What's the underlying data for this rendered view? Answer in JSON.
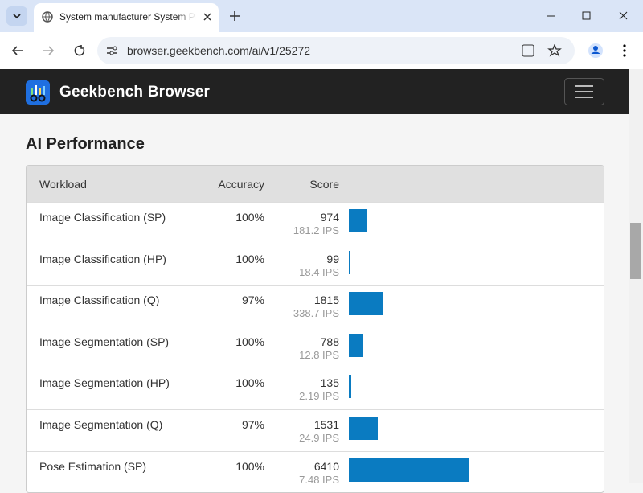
{
  "browser": {
    "tab_title": "System manufacturer System Pr",
    "url": "browser.geekbench.com/ai/v1/25272"
  },
  "header": {
    "brand": "Geekbench Browser"
  },
  "section": {
    "title": "AI Performance"
  },
  "table": {
    "columns": [
      "Workload",
      "Accuracy",
      "Score"
    ],
    "rows": [
      {
        "workload": "Image Classification (SP)",
        "accuracy": "100%",
        "score": 974,
        "ips": "181.2 IPS"
      },
      {
        "workload": "Image Classification (HP)",
        "accuracy": "100%",
        "score": 99,
        "ips": "18.4 IPS"
      },
      {
        "workload": "Image Classification (Q)",
        "accuracy": "97%",
        "score": 1815,
        "ips": "338.7 IPS"
      },
      {
        "workload": "Image Segmentation (SP)",
        "accuracy": "100%",
        "score": 788,
        "ips": "12.8 IPS"
      },
      {
        "workload": "Image Segmentation (HP)",
        "accuracy": "100%",
        "score": 135,
        "ips": "2.19 IPS"
      },
      {
        "workload": "Image Segmentation (Q)",
        "accuracy": "97%",
        "score": 1531,
        "ips": "24.9 IPS"
      },
      {
        "workload": "Pose Estimation (SP)",
        "accuracy": "100%",
        "score": 6410,
        "ips": "7.48 IPS"
      }
    ]
  }
}
